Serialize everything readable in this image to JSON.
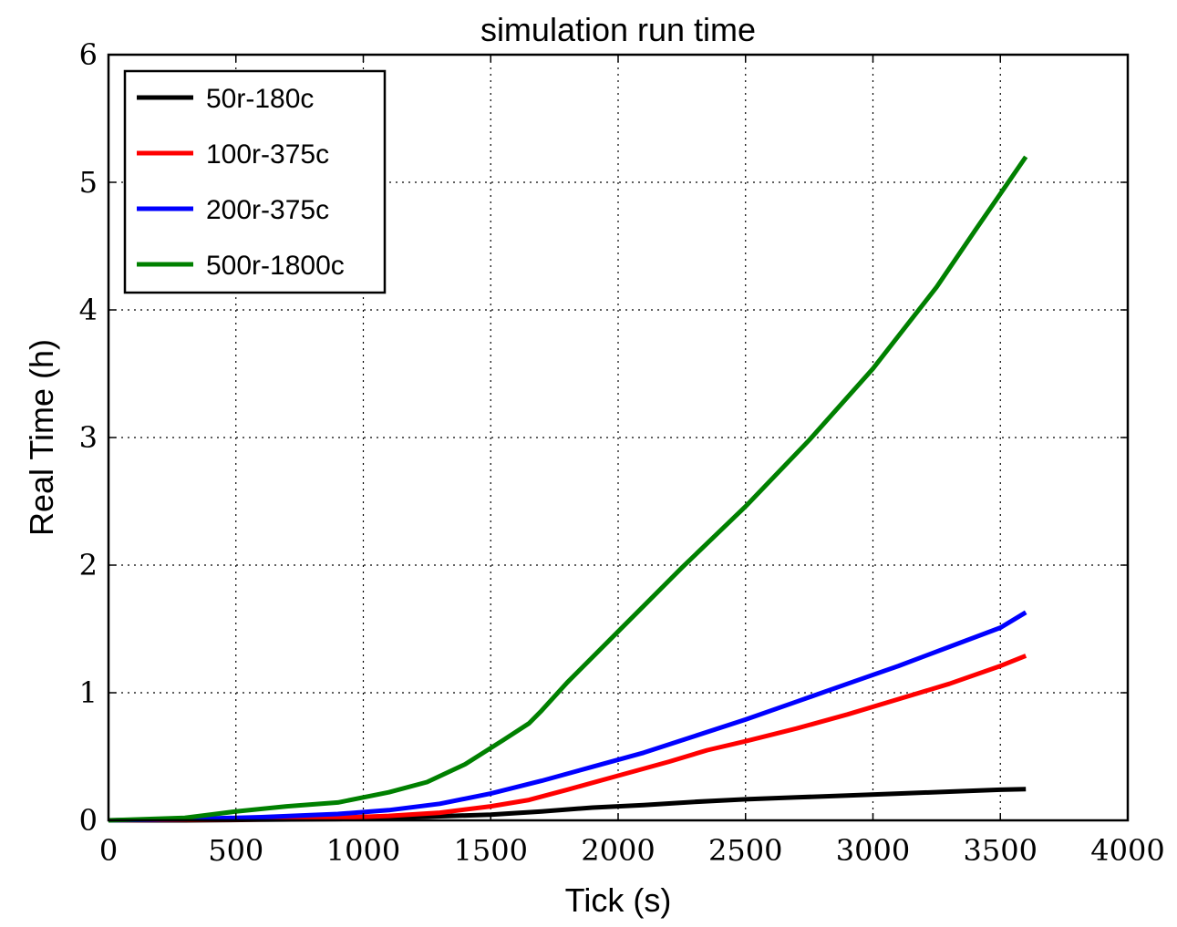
{
  "chart_data": {
    "type": "line",
    "title": "simulation run time",
    "xlabel": "Tick (s)",
    "ylabel": "Real Time (h)",
    "xlim": [
      0,
      4000
    ],
    "ylim": [
      0,
      6
    ],
    "xticks": [
      0,
      500,
      1000,
      1500,
      2000,
      2500,
      3000,
      3500,
      4000
    ],
    "yticks": [
      0,
      1,
      2,
      3,
      4,
      5,
      6
    ],
    "xtick_labels": [
      "0",
      "500",
      "1000",
      "1500",
      "2000",
      "2500",
      "3000",
      "3500",
      "4000"
    ],
    "ytick_labels": [
      "0",
      "1",
      "2",
      "3",
      "4",
      "5",
      "6"
    ],
    "grid": true,
    "legend_position": "top-left",
    "series": [
      {
        "name": "50r-180c",
        "color": "#000000",
        "x": [
          0,
          300,
          600,
          900,
          1200,
          1500,
          1700,
          1900,
          2100,
          2300,
          2500,
          2700,
          2900,
          3100,
          3300,
          3500,
          3600
        ],
        "y": [
          0,
          0.0,
          0.005,
          0.01,
          0.025,
          0.045,
          0.07,
          0.1,
          0.12,
          0.145,
          0.165,
          0.18,
          0.195,
          0.21,
          0.225,
          0.24,
          0.245
        ]
      },
      {
        "name": "100r-375c",
        "color": "#ff0000",
        "x": [
          0,
          300,
          600,
          900,
          1100,
          1300,
          1500,
          1650,
          1800,
          2000,
          2200,
          2350,
          2500,
          2700,
          2900,
          3100,
          3300,
          3500,
          3600
        ],
        "y": [
          0,
          0.005,
          0.01,
          0.02,
          0.035,
          0.06,
          0.11,
          0.16,
          0.24,
          0.35,
          0.46,
          0.55,
          0.62,
          0.72,
          0.83,
          0.95,
          1.07,
          1.21,
          1.29
        ]
      },
      {
        "name": "200r-375c",
        "color": "#0000ff",
        "x": [
          0,
          300,
          600,
          900,
          1100,
          1300,
          1500,
          1700,
          1900,
          2100,
          2300,
          2500,
          2700,
          2900,
          3100,
          3300,
          3500,
          3600
        ],
        "y": [
          0,
          0.01,
          0.025,
          0.05,
          0.08,
          0.13,
          0.21,
          0.31,
          0.42,
          0.53,
          0.66,
          0.79,
          0.93,
          1.07,
          1.21,
          1.36,
          1.51,
          1.63
        ]
      },
      {
        "name": "500r-1800c",
        "color": "#008000",
        "x": [
          0,
          300,
          500,
          700,
          900,
          1100,
          1250,
          1400,
          1550,
          1650,
          1700,
          1800,
          2000,
          2100,
          2250,
          2500,
          2750,
          3000,
          3250,
          3400,
          3500,
          3600
        ],
        "y": [
          0,
          0.02,
          0.07,
          0.11,
          0.14,
          0.22,
          0.3,
          0.44,
          0.63,
          0.76,
          0.86,
          1.08,
          1.48,
          1.68,
          1.98,
          2.46,
          2.98,
          3.54,
          4.18,
          4.62,
          4.91,
          5.2
        ]
      }
    ]
  }
}
